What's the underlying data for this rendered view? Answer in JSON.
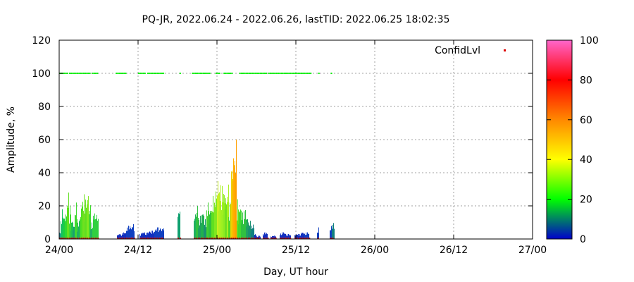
{
  "chart_data": {
    "type": "bar",
    "title": "PQ-JR, 2022.06.24 - 2022.06.26, lastTID: 2022.06.25 18:02:35",
    "xlabel": "Day, UT hour",
    "ylabel": "Amplitude, %",
    "xlim": [
      0,
      72
    ],
    "ylim": [
      0,
      120
    ],
    "x_ticks": [
      {
        "x": 0,
        "label": "24/00"
      },
      {
        "x": 12,
        "label": "24/12"
      },
      {
        "x": 24,
        "label": "25/00"
      },
      {
        "x": 36,
        "label": "25/12"
      },
      {
        "x": 48,
        "label": "26/00"
      },
      {
        "x": 60,
        "label": "26/12"
      },
      {
        "x": 72,
        "label": "27/00"
      }
    ],
    "y_ticks": [
      0,
      20,
      40,
      60,
      80,
      100,
      120
    ],
    "grid": true,
    "legend": {
      "label": "ConfidLvl",
      "position": "top-right"
    },
    "colorbar": {
      "min": 0,
      "max": 100,
      "ticks": [
        0,
        20,
        40,
        60,
        80,
        100
      ],
      "colors": [
        "#0000cc",
        "#00ff00",
        "#ffff00",
        "#ff8800",
        "#ff0000",
        "#ff66cc"
      ]
    },
    "series": [
      {
        "name": "Amplitude",
        "bins": [
          {
            "from": 0.0,
            "to": 0.3,
            "peak": 5,
            "color": "#1a8fa0"
          },
          {
            "from": 0.3,
            "to": 0.6,
            "peak": 18,
            "color": "#19c060"
          },
          {
            "from": 0.6,
            "to": 0.9,
            "peak": 14,
            "color": "#1ad040"
          },
          {
            "from": 0.9,
            "to": 1.2,
            "peak": 17,
            "color": "#30d830"
          },
          {
            "from": 1.2,
            "to": 1.5,
            "peak": 28,
            "color": "#60e020"
          },
          {
            "from": 1.5,
            "to": 1.8,
            "peak": 20,
            "color": "#40d830"
          },
          {
            "from": 1.8,
            "to": 2.1,
            "peak": 12,
            "color": "#20c050"
          },
          {
            "from": 2.1,
            "to": 2.4,
            "peak": 9,
            "color": "#18a070"
          },
          {
            "from": 2.4,
            "to": 2.7,
            "peak": 22,
            "color": "#40d830"
          },
          {
            "from": 2.7,
            "to": 3.0,
            "peak": 10,
            "color": "#20b060"
          },
          {
            "from": 3.0,
            "to": 3.3,
            "peak": 14,
            "color": "#20c050"
          },
          {
            "from": 3.3,
            "to": 3.6,
            "peak": 24,
            "color": "#50e020"
          },
          {
            "from": 3.6,
            "to": 3.9,
            "peak": 27,
            "color": "#70e020"
          },
          {
            "from": 3.9,
            "to": 4.2,
            "peak": 25,
            "color": "#60e020"
          },
          {
            "from": 4.2,
            "to": 4.5,
            "peak": 29,
            "color": "#80e820"
          },
          {
            "from": 4.5,
            "to": 4.8,
            "peak": 21,
            "color": "#40d830"
          },
          {
            "from": 4.8,
            "to": 5.1,
            "peak": 10,
            "color": "#20b060"
          },
          {
            "from": 5.1,
            "to": 5.5,
            "peak": 16,
            "color": "#30d040"
          },
          {
            "from": 5.5,
            "to": 5.9,
            "peak": 15,
            "color": "#30d040"
          },
          {
            "from": 8.8,
            "to": 9.5,
            "peak": 3,
            "color": "#1030c0"
          },
          {
            "from": 9.5,
            "to": 10.2,
            "peak": 4,
            "color": "#1030c0"
          },
          {
            "from": 10.2,
            "to": 11.0,
            "peak": 8,
            "color": "#1040c0"
          },
          {
            "from": 11.0,
            "to": 11.4,
            "peak": 9,
            "color": "#1040c0"
          },
          {
            "from": 12.3,
            "to": 13.4,
            "peak": 4,
            "color": "#1030c0"
          },
          {
            "from": 13.4,
            "to": 14.5,
            "peak": 5,
            "color": "#1030c0"
          },
          {
            "from": 14.5,
            "to": 15.6,
            "peak": 7,
            "color": "#1040c0"
          },
          {
            "from": 15.6,
            "to": 15.9,
            "peak": 7,
            "color": "#1040c0"
          },
          {
            "from": 18.0,
            "to": 18.4,
            "peak": 18,
            "color": "#10a070"
          },
          {
            "from": 20.5,
            "to": 20.8,
            "peak": 16,
            "color": "#20b060"
          },
          {
            "from": 20.8,
            "to": 21.2,
            "peak": 20,
            "color": "#30c040"
          },
          {
            "from": 21.2,
            "to": 21.6,
            "peak": 14,
            "color": "#20a060"
          },
          {
            "from": 21.6,
            "to": 22.0,
            "peak": 17,
            "color": "#20b050"
          },
          {
            "from": 22.0,
            "to": 22.4,
            "peak": 12,
            "color": "#1a9070"
          },
          {
            "from": 22.4,
            "to": 22.8,
            "peak": 22,
            "color": "#40d030"
          },
          {
            "from": 22.8,
            "to": 23.2,
            "peak": 19,
            "color": "#30c040"
          },
          {
            "from": 23.2,
            "to": 23.6,
            "peak": 26,
            "color": "#60e020"
          },
          {
            "from": 23.6,
            "to": 24.0,
            "peak": 29,
            "color": "#80e820"
          },
          {
            "from": 24.0,
            "to": 24.3,
            "peak": 37,
            "color": "#c8f020"
          },
          {
            "from": 24.3,
            "to": 24.6,
            "peak": 34,
            "color": "#b0f020"
          },
          {
            "from": 24.6,
            "to": 24.9,
            "peak": 32,
            "color": "#a0f020"
          },
          {
            "from": 24.9,
            "to": 25.2,
            "peak": 30,
            "color": "#90ec20"
          },
          {
            "from": 25.2,
            "to": 25.5,
            "peak": 27,
            "color": "#70e020"
          },
          {
            "from": 25.5,
            "to": 25.8,
            "peak": 33,
            "color": "#a8f020"
          },
          {
            "from": 25.8,
            "to": 26.1,
            "peak": 22,
            "color": "#50d828"
          },
          {
            "from": 26.1,
            "to": 26.4,
            "peak": 47,
            "color": "#f0d000"
          },
          {
            "from": 26.4,
            "to": 26.7,
            "peak": 56,
            "color": "#ffb000"
          },
          {
            "from": 26.7,
            "to": 27.0,
            "peak": 60,
            "color": "#ffa000"
          },
          {
            "from": 27.0,
            "to": 27.3,
            "peak": 24,
            "color": "#60e020"
          },
          {
            "from": 27.3,
            "to": 27.7,
            "peak": 20,
            "color": "#40d830"
          },
          {
            "from": 27.7,
            "to": 28.0,
            "peak": 16,
            "color": "#30c040"
          },
          {
            "from": 28.0,
            "to": 28.4,
            "peak": 18,
            "color": "#30c040"
          },
          {
            "from": 28.4,
            "to": 28.8,
            "peak": 13,
            "color": "#20a060"
          },
          {
            "from": 28.8,
            "to": 29.2,
            "peak": 11,
            "color": "#1a9070"
          },
          {
            "from": 29.2,
            "to": 29.6,
            "peak": 9,
            "color": "#108080"
          },
          {
            "from": 29.6,
            "to": 30.0,
            "peak": 3,
            "color": "#1030c0"
          },
          {
            "from": 30.0,
            "to": 30.6,
            "peak": 2,
            "color": "#1030c0"
          },
          {
            "from": 31.0,
            "to": 31.7,
            "peak": 4,
            "color": "#1030c0"
          },
          {
            "from": 32.2,
            "to": 33.0,
            "peak": 2,
            "color": "#1030c0"
          },
          {
            "from": 33.6,
            "to": 34.4,
            "peak": 4,
            "color": "#1030c0"
          },
          {
            "from": 34.4,
            "to": 35.2,
            "peak": 3,
            "color": "#1030c0"
          },
          {
            "from": 35.8,
            "to": 36.6,
            "peak": 3,
            "color": "#1030c0"
          },
          {
            "from": 36.6,
            "to": 37.3,
            "peak": 4,
            "color": "#1030c0"
          },
          {
            "from": 37.3,
            "to": 38.0,
            "peak": 4,
            "color": "#1040c0"
          },
          {
            "from": 39.3,
            "to": 39.5,
            "peak": 7,
            "color": "#1040c0"
          },
          {
            "from": 41.2,
            "to": 41.5,
            "peak": 8,
            "color": "#1040c0"
          },
          {
            "from": 41.5,
            "to": 41.8,
            "peak": 10,
            "color": "#108080"
          }
        ]
      },
      {
        "name": "ConfidLvl",
        "color": "#00ee00",
        "value": 100,
        "segments": [
          [
            0,
            1.2
          ],
          [
            1.5,
            4.6
          ],
          [
            5.0,
            5.8
          ],
          [
            8.6,
            10.2
          ],
          [
            12.0,
            13.0
          ],
          [
            13.4,
            15.8
          ],
          [
            18.3,
            18.5
          ],
          [
            20.2,
            23.0
          ],
          [
            23.8,
            24.4
          ],
          [
            25.0,
            26.2
          ],
          [
            27.4,
            31.5
          ],
          [
            31.8,
            38.2
          ],
          [
            39.4,
            39.6
          ],
          [
            41.3,
            41.5
          ]
        ]
      }
    ]
  }
}
